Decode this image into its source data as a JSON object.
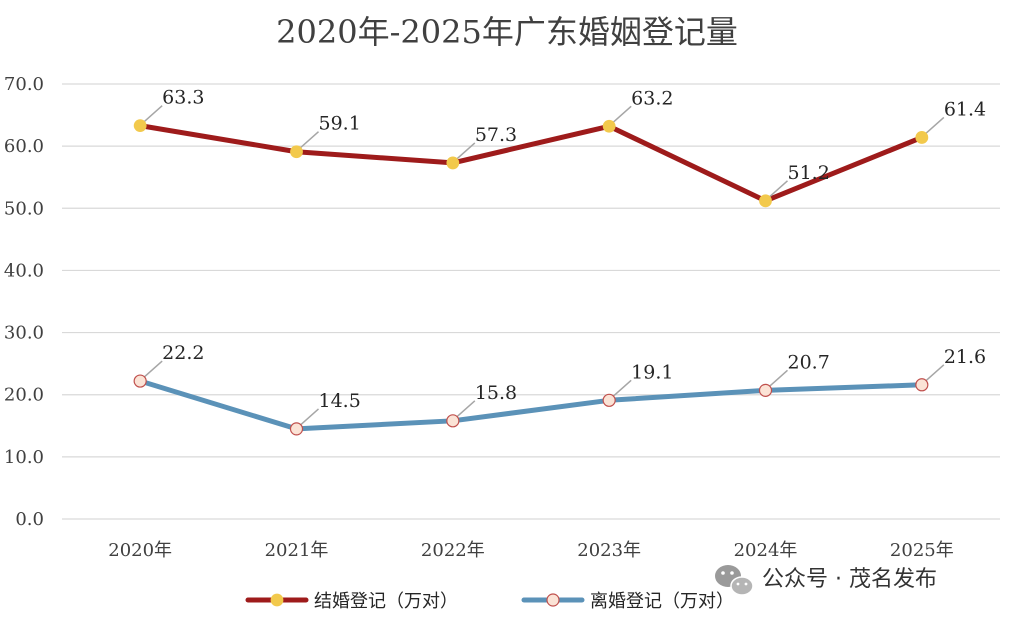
{
  "chart_data": {
    "type": "line",
    "title": "2020年-2025年广东婚姻登记量",
    "categories": [
      "2020年",
      "2021年",
      "2022年",
      "2023年",
      "2024年",
      "2025年"
    ],
    "ylim": [
      0,
      70
    ],
    "yticks": [
      "0.0",
      "10.0",
      "20.0",
      "30.0",
      "40.0",
      "50.0",
      "60.0",
      "70.0"
    ],
    "grid": true,
    "legend_position": "bottom",
    "series": [
      {
        "name": "结婚登记（万对）",
        "values": [
          63.3,
          59.1,
          57.3,
          63.2,
          51.2,
          61.4
        ],
        "labels": [
          "63.3",
          "59.1",
          "57.3",
          "63.2",
          "51.2",
          "61.4"
        ],
        "color": "#9e1b1b",
        "marker_fill": "#f2c94c"
      },
      {
        "name": "离婚登记（万对）",
        "values": [
          22.2,
          14.5,
          15.8,
          19.1,
          20.7,
          21.6
        ],
        "labels": [
          "22.2",
          "14.5",
          "15.8",
          "19.1",
          "20.7",
          "21.6"
        ],
        "color": "#5b92b8",
        "marker_fill": "#fbe3d6"
      }
    ]
  },
  "watermark": {
    "text": "公众号 · 茂名发布",
    "icon": "wechat-icon"
  }
}
